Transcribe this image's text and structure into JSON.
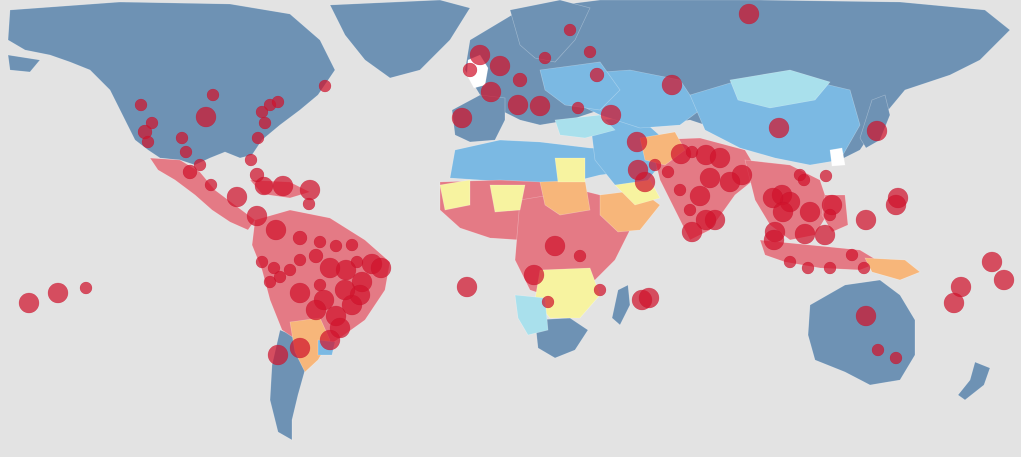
{
  "map": {
    "background_color": "#e3e3e3",
    "marker_color": "#d0142c",
    "category_colors": {
      "base_land": "#6e92b4",
      "risk_very_low": "#a9e0ec",
      "risk_low": "#7bb9e3",
      "risk_medium": "#f7f3a0",
      "risk_high": "#f7b67a",
      "risk_very_high": "#e47a85",
      "no_data": "#ffffff"
    }
  }
}
